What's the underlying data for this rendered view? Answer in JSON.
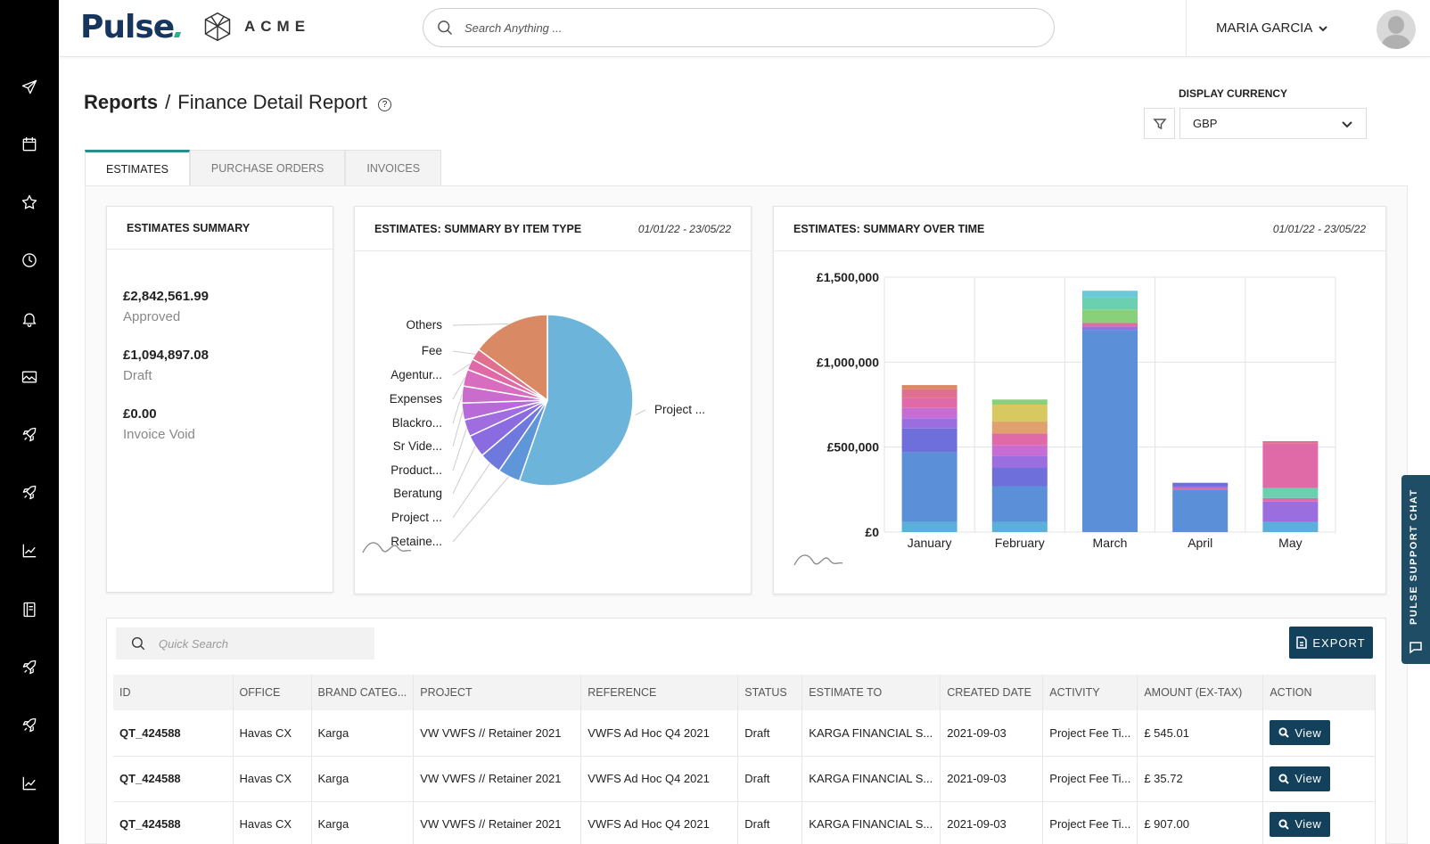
{
  "header": {
    "logo_text": "Pulse",
    "brand_text": "ACME",
    "search_placeholder": "Search Anything ...",
    "user_name": "MARIA GARCIA"
  },
  "sidebar": {
    "icons": [
      "send-icon",
      "calendar-icon",
      "star-icon",
      "clock-icon",
      "bell-icon",
      "image-icon",
      "rocket-icon",
      "rocket-icon",
      "chart-icon",
      "book-icon",
      "rocket-icon",
      "rocket-icon",
      "chart-icon"
    ]
  },
  "page": {
    "breadcrumb_root": "Reports",
    "breadcrumb_sep": "/",
    "title": "Finance Detail Report",
    "currency_label": "DISPLAY CURRENCY",
    "currency_value": "GBP"
  },
  "tabs": [
    {
      "label": "ESTIMATES",
      "active": true
    },
    {
      "label": "PURCHASE ORDERS",
      "active": false
    },
    {
      "label": "INVOICES",
      "active": false
    }
  ],
  "summary": {
    "title": "ESTIMATES SUMMARY",
    "items": [
      {
        "amount": "£2,842,561.99",
        "label": "Approved"
      },
      {
        "amount": "£1,094,897.08",
        "label": "Draft"
      },
      {
        "amount": "£0.00",
        "label": "Invoice Void"
      }
    ]
  },
  "pie_card": {
    "title": "ESTIMATES: SUMMARY BY ITEM TYPE",
    "date_range": "01/01/22 - 23/05/22"
  },
  "bar_card": {
    "title": "ESTIMATES: SUMMARY OVER TIME",
    "date_range": "01/01/22 - 23/05/22"
  },
  "chart_data": [
    {
      "type": "pie",
      "title": "ESTIMATES: SUMMARY BY ITEM TYPE",
      "slices": [
        {
          "label": "Project ...",
          "value": 52,
          "color": "#6cb4d9"
        },
        {
          "label": "Retaine...",
          "value": 4,
          "color": "#5f95d9"
        },
        {
          "label": "Project ...",
          "value": 4,
          "color": "#6f78dc"
        },
        {
          "label": "Beratung",
          "value": 4,
          "color": "#8a6be0"
        },
        {
          "label": "Product...",
          "value": 3,
          "color": "#a06de0"
        },
        {
          "label": "Sr Vide...",
          "value": 3,
          "color": "#b86ad8"
        },
        {
          "label": "Blackro...",
          "value": 3,
          "color": "#c96ccd"
        },
        {
          "label": "Expenses",
          "value": 3,
          "color": "#d86cbf"
        },
        {
          "label": "Agentur...",
          "value": 2,
          "color": "#e06aa8"
        },
        {
          "label": "Fee",
          "value": 2,
          "color": "#e0708f"
        },
        {
          "label": "Others",
          "value": 14,
          "color": "#d98a64"
        }
      ]
    },
    {
      "type": "bar",
      "title": "ESTIMATES: SUMMARY OVER TIME",
      "categories": [
        "January",
        "February",
        "March",
        "April",
        "May"
      ],
      "y_ticks": [
        "£0",
        "£500,000",
        "£1,000,000",
        "£1,500,000"
      ],
      "ylim": [
        0,
        1500000
      ],
      "stacks": [
        [
          {
            "value": 60000,
            "color": "#5ab0d8"
          },
          {
            "value": 410000,
            "color": "#5b8fd8"
          },
          {
            "value": 140000,
            "color": "#6f6fdc"
          },
          {
            "value": 60000,
            "color": "#9b6ee0"
          },
          {
            "value": 60000,
            "color": "#c66cd2"
          },
          {
            "value": 60000,
            "color": "#e06aa8"
          },
          {
            "value": 50000,
            "color": "#e0708f"
          },
          {
            "value": 25000,
            "color": "#d98a64"
          }
        ],
        [
          {
            "value": 60000,
            "color": "#5ab0d8"
          },
          {
            "value": 210000,
            "color": "#5b8fd8"
          },
          {
            "value": 110000,
            "color": "#6f6fdc"
          },
          {
            "value": 70000,
            "color": "#9b6ee0"
          },
          {
            "value": 60000,
            "color": "#c66cd2"
          },
          {
            "value": 70000,
            "color": "#e06aa8"
          },
          {
            "value": 70000,
            "color": "#e0a070"
          },
          {
            "value": 100000,
            "color": "#d8c860"
          },
          {
            "value": 30000,
            "color": "#88d07a"
          }
        ],
        [
          {
            "value": 1190000,
            "color": "#5b8fd8"
          },
          {
            "value": 20000,
            "color": "#9b6ee0"
          },
          {
            "value": 20000,
            "color": "#e06aa8"
          },
          {
            "value": 80000,
            "color": "#88d07a"
          },
          {
            "value": 70000,
            "color": "#6ad0b0"
          },
          {
            "value": 40000,
            "color": "#6ac8d8"
          }
        ],
        [
          {
            "value": 250000,
            "color": "#5b8fd8"
          },
          {
            "value": 10000,
            "color": "#e06aa8"
          },
          {
            "value": 10000,
            "color": "#9b6ee0"
          },
          {
            "value": 20000,
            "color": "#6f6fdc"
          }
        ],
        [
          {
            "value": 60000,
            "color": "#5ab0d8"
          },
          {
            "value": 120000,
            "color": "#9b6ee0"
          },
          {
            "value": 20000,
            "color": "#e06aa8"
          },
          {
            "value": 60000,
            "color": "#6ad0b0"
          },
          {
            "value": 260000,
            "color": "#e06aa8"
          },
          {
            "value": 15000,
            "color": "#e0708f"
          }
        ]
      ]
    }
  ],
  "table": {
    "quick_search_placeholder": "Quick Search",
    "export_label": "EXPORT",
    "columns": [
      "ID",
      "OFFICE",
      "BRAND CATEG...",
      "PROJECT",
      "REFERENCE",
      "STATUS",
      "ESTIMATE TO",
      "CREATED DATE",
      "ACTIVITY",
      "AMOUNT (EX-TAX)",
      "ACTION"
    ],
    "view_label": "View",
    "rows": [
      {
        "id": "QT_424588",
        "office": "Havas CX",
        "brand": "Karga",
        "project": "VW VWFS // Retainer 2021",
        "reference": "VWFS Ad Hoc Q4 2021",
        "status": "Draft",
        "estimate_to": "KARGA FINANCIAL S...",
        "created": "2021-09-03",
        "activity": "Project Fee Ti...",
        "amount": "£ 545.01"
      },
      {
        "id": "QT_424588",
        "office": "Havas CX",
        "brand": "Karga",
        "project": "VW VWFS // Retainer 2021",
        "reference": "VWFS Ad Hoc Q4 2021",
        "status": "Draft",
        "estimate_to": "KARGA FINANCIAL S...",
        "created": "2021-09-03",
        "activity": "Project Fee Ti...",
        "amount": "£ 35.72"
      },
      {
        "id": "QT_424588",
        "office": "Havas CX",
        "brand": "Karga",
        "project": "VW VWFS // Retainer 2021",
        "reference": "VWFS Ad Hoc Q4 2021",
        "status": "Draft",
        "estimate_to": "KARGA FINANCIAL S...",
        "created": "2021-09-03",
        "activity": "Project Fee Ti...",
        "amount": "£ 907.00"
      }
    ]
  },
  "support_chat": {
    "label": "PULSE SUPPORT CHAT"
  }
}
